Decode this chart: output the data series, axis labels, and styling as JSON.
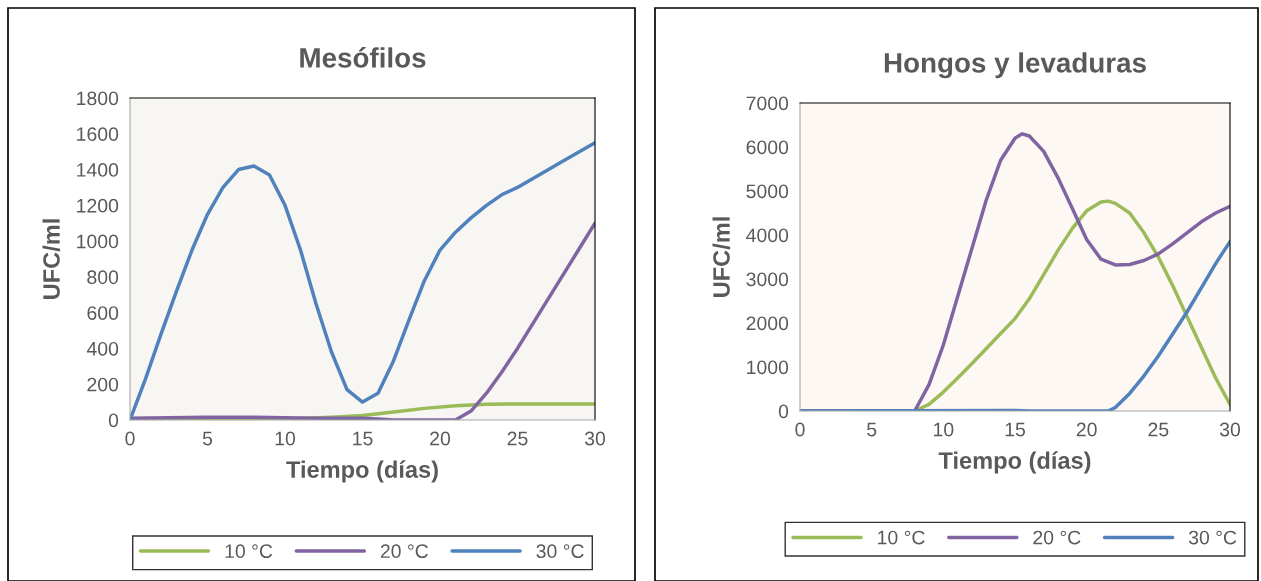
{
  "chart_data": [
    {
      "type": "line",
      "title": "Mesófilos",
      "xlabel": "Tiempo (días)",
      "ylabel": "UFC/ml",
      "xlim": [
        0,
        30
      ],
      "xticks": [
        0,
        5,
        10,
        15,
        20,
        25,
        30
      ],
      "ylim": [
        0,
        1800
      ],
      "yticks": [
        0,
        200,
        400,
        600,
        800,
        1000,
        1200,
        1400,
        1600,
        1800
      ],
      "grid": false,
      "legend": "bottom",
      "marker": "none",
      "line_style": "solid",
      "series": [
        {
          "name": "10 °C",
          "color": "#9bbb59",
          "x": [
            0,
            10,
            13,
            15,
            17,
            19,
            21,
            23,
            25,
            30
          ],
          "values": [
            0,
            5,
            15,
            25,
            45,
            65,
            80,
            88,
            90,
            90
          ]
        },
        {
          "name": "20 °C",
          "color": "#8064a2",
          "x": [
            0,
            5,
            8,
            12,
            15,
            16,
            17,
            21,
            22,
            23,
            24,
            25,
            26,
            27,
            28,
            29,
            30
          ],
          "values": [
            10,
            15,
            15,
            10,
            10,
            5,
            0,
            0,
            50,
            150,
            270,
            400,
            540,
            680,
            820,
            960,
            1100
          ]
        },
        {
          "name": "30 °C",
          "color": "#4f81bd",
          "x": [
            0,
            1,
            2,
            3,
            4,
            5,
            6,
            7,
            8,
            9,
            10,
            11,
            12,
            13,
            14,
            15,
            16,
            17,
            18,
            19,
            20,
            21,
            22,
            23,
            24,
            25,
            26,
            28,
            30
          ],
          "values": [
            0,
            230,
            480,
            720,
            950,
            1150,
            1300,
            1400,
            1420,
            1370,
            1200,
            950,
            650,
            380,
            170,
            100,
            150,
            330,
            560,
            780,
            950,
            1050,
            1130,
            1200,
            1260,
            1300,
            1350,
            1450,
            1550
          ]
        }
      ]
    },
    {
      "type": "line",
      "title": "Hongos y levaduras",
      "xlabel": "Tiempo (días)",
      "ylabel": "UFC/ml",
      "xlim": [
        0,
        30
      ],
      "xticks": [
        0,
        5,
        10,
        15,
        20,
        25,
        30
      ],
      "ylim": [
        0,
        7000
      ],
      "yticks": [
        0,
        1000,
        2000,
        3000,
        4000,
        5000,
        6000,
        7000
      ],
      "grid": false,
      "legend": "bottom",
      "marker": "none",
      "line_style": "solid",
      "series": [
        {
          "name": "10 °C",
          "color": "#9bbb59",
          "x": [
            0,
            8,
            9,
            10,
            11,
            12,
            13,
            14,
            15,
            16,
            17,
            18,
            19,
            20,
            21,
            21.5,
            22,
            23,
            24,
            25,
            26,
            27,
            28,
            29,
            30
          ],
          "values": [
            0,
            0,
            150,
            430,
            750,
            1080,
            1420,
            1760,
            2100,
            2550,
            3100,
            3650,
            4150,
            4550,
            4750,
            4770,
            4720,
            4500,
            4050,
            3500,
            2850,
            2150,
            1450,
            750,
            150
          ]
        },
        {
          "name": "20 °C",
          "color": "#8064a2",
          "x": [
            0,
            8,
            9,
            10,
            11,
            12,
            13,
            14,
            15,
            15.5,
            16,
            17,
            18,
            19,
            20,
            21,
            22,
            23,
            24,
            25,
            26,
            27,
            28,
            29,
            30
          ],
          "values": [
            0,
            0,
            600,
            1500,
            2600,
            3700,
            4800,
            5700,
            6200,
            6300,
            6250,
            5900,
            5300,
            4600,
            3900,
            3450,
            3320,
            3330,
            3420,
            3570,
            3800,
            4050,
            4300,
            4500,
            4650
          ]
        },
        {
          "name": "30 °C",
          "color": "#4f81bd",
          "x": [
            0,
            15,
            16,
            21,
            21.5,
            22,
            23,
            24,
            25,
            26,
            27,
            28,
            29,
            30
          ],
          "values": [
            0,
            10,
            0,
            0,
            0,
            80,
            400,
            800,
            1250,
            1750,
            2250,
            2800,
            3350,
            3850
          ]
        }
      ]
    }
  ]
}
